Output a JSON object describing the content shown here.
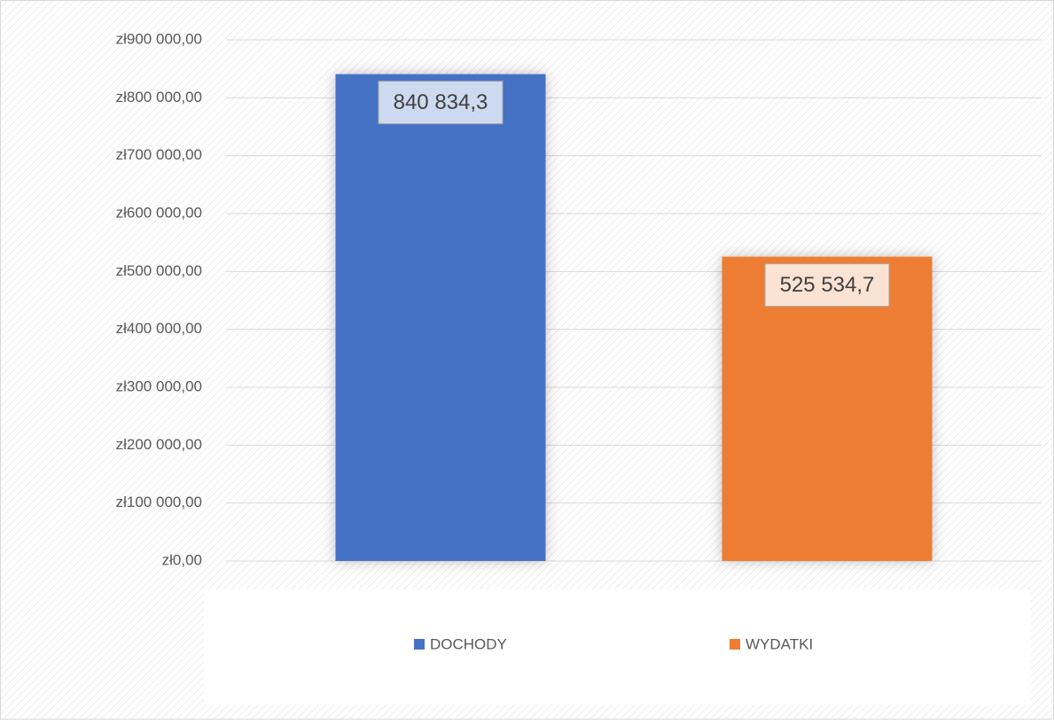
{
  "chart_data": {
    "type": "bar",
    "categories": [
      null
    ],
    "series": [
      {
        "name": "DOCHODY",
        "color": "#4472c4",
        "label_fill": "#cdd9ef",
        "values": [
          840834.3
        ],
        "value_labels": [
          "840 834,3"
        ]
      },
      {
        "name": "WYDATKI",
        "color": "#ed7d31",
        "label_fill": "#fbe3d3",
        "values": [
          525534.7
        ],
        "value_labels": [
          "525 534,7"
        ]
      }
    ],
    "ylim": [
      0,
      900000
    ],
    "yticks": [
      {
        "value": 0,
        "label": "zł0,00"
      },
      {
        "value": 100000,
        "label": "zł100 000,00"
      },
      {
        "value": 200000,
        "label": "zł200 000,00"
      },
      {
        "value": 300000,
        "label": "zł300 000,00"
      },
      {
        "value": 400000,
        "label": "zł400 000,00"
      },
      {
        "value": 500000,
        "label": "zł500 000,00"
      },
      {
        "value": 600000,
        "label": "zł600 000,00"
      },
      {
        "value": 700000,
        "label": "zł700 000,00"
      },
      {
        "value": 800000,
        "label": "zł800 000,00"
      },
      {
        "value": 900000,
        "label": "zł900 000,00"
      }
    ],
    "grid": true,
    "legend": "bottom"
  }
}
